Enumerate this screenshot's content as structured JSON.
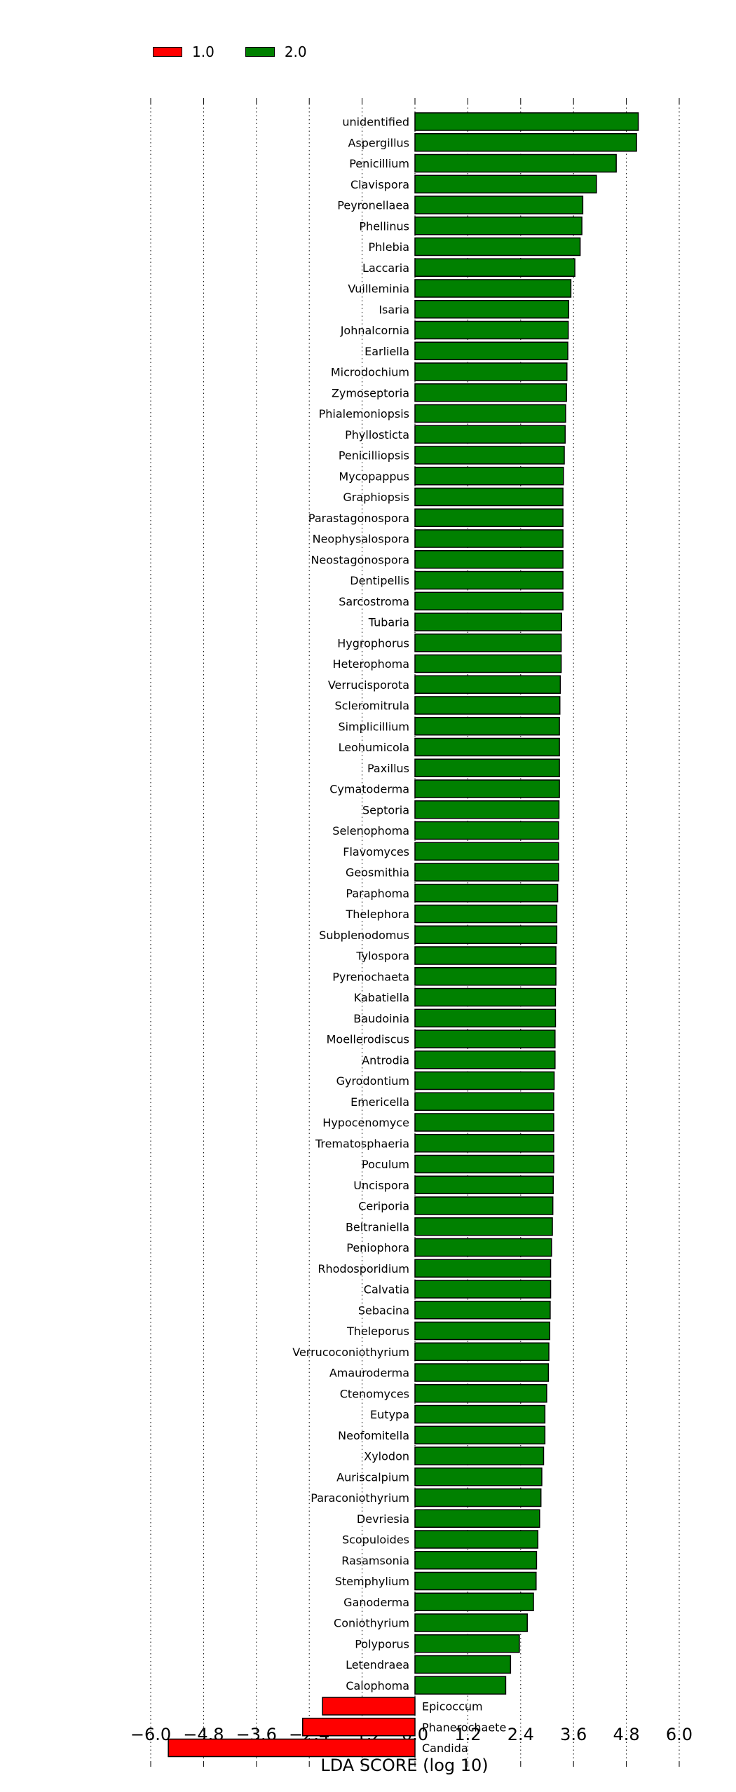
{
  "legend": {
    "items": [
      {
        "label": "1.0",
        "color": "#ff0000"
      },
      {
        "label": "2.0",
        "color": "#008000"
      }
    ]
  },
  "chart_data": {
    "type": "bar",
    "orientation": "horizontal",
    "xlabel": "LDA SCORE (log 10)",
    "xlim": [
      -6.0,
      6.0
    ],
    "xticks": [
      "−6.0",
      "−4.8",
      "−3.6",
      "−2.4",
      "−1.2",
      "0.0",
      "1.2",
      "2.4",
      "3.6",
      "4.8",
      "6.0"
    ],
    "xtick_values": [
      -6.0,
      -4.8,
      -3.6,
      -2.4,
      -1.2,
      0.0,
      1.2,
      2.4,
      3.6,
      4.8,
      6.0
    ],
    "grid": "vertical dotted",
    "legend_position": "top-left",
    "series": [
      {
        "name": "1.0",
        "color": "#ff0000"
      },
      {
        "name": "2.0",
        "color": "#008000"
      }
    ],
    "bars": [
      {
        "label": "unidentified",
        "value": 5.07,
        "group": "2.0"
      },
      {
        "label": "Aspergillus",
        "value": 5.03,
        "group": "2.0"
      },
      {
        "label": "Penicillium",
        "value": 4.57,
        "group": "2.0"
      },
      {
        "label": "Clavispora",
        "value": 4.12,
        "group": "2.0"
      },
      {
        "label": "Peyronellaea",
        "value": 3.81,
        "group": "2.0"
      },
      {
        "label": "Phellinus",
        "value": 3.79,
        "group": "2.0"
      },
      {
        "label": "Phlebia",
        "value": 3.75,
        "group": "2.0"
      },
      {
        "label": "Laccaria",
        "value": 3.63,
        "group": "2.0"
      },
      {
        "label": "Vuilleminia",
        "value": 3.54,
        "group": "2.0"
      },
      {
        "label": "Isaria",
        "value": 3.49,
        "group": "2.0"
      },
      {
        "label": "Johnalcornia",
        "value": 3.48,
        "group": "2.0"
      },
      {
        "label": "Earliella",
        "value": 3.47,
        "group": "2.0"
      },
      {
        "label": "Microdochium",
        "value": 3.45,
        "group": "2.0"
      },
      {
        "label": "Zymoseptoria",
        "value": 3.44,
        "group": "2.0"
      },
      {
        "label": "Phialemoniopsis",
        "value": 3.42,
        "group": "2.0"
      },
      {
        "label": "Phyllosticta",
        "value": 3.41,
        "group": "2.0"
      },
      {
        "label": "Penicilliopsis",
        "value": 3.39,
        "group": "2.0"
      },
      {
        "label": "Mycopappus",
        "value": 3.37,
        "group": "2.0"
      },
      {
        "label": "Graphiopsis",
        "value": 3.36,
        "group": "2.0"
      },
      {
        "label": "Parastagonospora",
        "value": 3.36,
        "group": "2.0"
      },
      {
        "label": "Neophysalospora",
        "value": 3.36,
        "group": "2.0"
      },
      {
        "label": "Neostagonospora",
        "value": 3.36,
        "group": "2.0"
      },
      {
        "label": "Dentipellis",
        "value": 3.36,
        "group": "2.0"
      },
      {
        "label": "Sarcostroma",
        "value": 3.36,
        "group": "2.0"
      },
      {
        "label": "Tubaria",
        "value": 3.33,
        "group": "2.0"
      },
      {
        "label": "Hygrophorus",
        "value": 3.32,
        "group": "2.0"
      },
      {
        "label": "Heterophoma",
        "value": 3.32,
        "group": "2.0"
      },
      {
        "label": "Verrucisporota",
        "value": 3.3,
        "group": "2.0"
      },
      {
        "label": "Scleromitrula",
        "value": 3.29,
        "group": "2.0"
      },
      {
        "label": "Simplicillium",
        "value": 3.28,
        "group": "2.0"
      },
      {
        "label": "Leohumicola",
        "value": 3.28,
        "group": "2.0"
      },
      {
        "label": "Paxillus",
        "value": 3.28,
        "group": "2.0"
      },
      {
        "label": "Cymatoderma",
        "value": 3.28,
        "group": "2.0"
      },
      {
        "label": "Septoria",
        "value": 3.27,
        "group": "2.0"
      },
      {
        "label": "Selenophoma",
        "value": 3.26,
        "group": "2.0"
      },
      {
        "label": "Flavomyces",
        "value": 3.26,
        "group": "2.0"
      },
      {
        "label": "Geosmithia",
        "value": 3.26,
        "group": "2.0"
      },
      {
        "label": "Paraphoma",
        "value": 3.24,
        "group": "2.0"
      },
      {
        "label": "Thelephora",
        "value": 3.22,
        "group": "2.0"
      },
      {
        "label": "Subplenodomus",
        "value": 3.22,
        "group": "2.0"
      },
      {
        "label": "Tylospora",
        "value": 3.2,
        "group": "2.0"
      },
      {
        "label": "Pyrenochaeta",
        "value": 3.2,
        "group": "2.0"
      },
      {
        "label": "Kabatiella",
        "value": 3.19,
        "group": "2.0"
      },
      {
        "label": "Baudoinia",
        "value": 3.19,
        "group": "2.0"
      },
      {
        "label": "Moellerodiscus",
        "value": 3.18,
        "group": "2.0"
      },
      {
        "label": "Antrodia",
        "value": 3.18,
        "group": "2.0"
      },
      {
        "label": "Gyrodontium",
        "value": 3.16,
        "group": "2.0"
      },
      {
        "label": "Emericella",
        "value": 3.15,
        "group": "2.0"
      },
      {
        "label": "Hypocenomyce",
        "value": 3.15,
        "group": "2.0"
      },
      {
        "label": "Trematosphaeria",
        "value": 3.15,
        "group": "2.0"
      },
      {
        "label": "Poculum",
        "value": 3.15,
        "group": "2.0"
      },
      {
        "label": "Uncispora",
        "value": 3.14,
        "group": "2.0"
      },
      {
        "label": "Ceriporia",
        "value": 3.13,
        "group": "2.0"
      },
      {
        "label": "Beltraniella",
        "value": 3.12,
        "group": "2.0"
      },
      {
        "label": "Peniophora",
        "value": 3.1,
        "group": "2.0"
      },
      {
        "label": "Rhodosporidium",
        "value": 3.08,
        "group": "2.0"
      },
      {
        "label": "Calvatia",
        "value": 3.08,
        "group": "2.0"
      },
      {
        "label": "Sebacina",
        "value": 3.07,
        "group": "2.0"
      },
      {
        "label": "Theleporus",
        "value": 3.06,
        "group": "2.0"
      },
      {
        "label": "Verrucoconiothyrium",
        "value": 3.04,
        "group": "2.0"
      },
      {
        "label": "Amauroderma",
        "value": 3.03,
        "group": "2.0"
      },
      {
        "label": "Ctenomyces",
        "value": 2.99,
        "group": "2.0"
      },
      {
        "label": "Eutypa",
        "value": 2.95,
        "group": "2.0"
      },
      {
        "label": "Neofomitella",
        "value": 2.95,
        "group": "2.0"
      },
      {
        "label": "Xylodon",
        "value": 2.92,
        "group": "2.0"
      },
      {
        "label": "Auriscalpium",
        "value": 2.88,
        "group": "2.0"
      },
      {
        "label": "Paraconiothyrium",
        "value": 2.86,
        "group": "2.0"
      },
      {
        "label": "Devriesia",
        "value": 2.83,
        "group": "2.0"
      },
      {
        "label": "Scopuloides",
        "value": 2.79,
        "group": "2.0"
      },
      {
        "label": "Rasamsonia",
        "value": 2.76,
        "group": "2.0"
      },
      {
        "label": "Stemphylium",
        "value": 2.75,
        "group": "2.0"
      },
      {
        "label": "Ganoderma",
        "value": 2.69,
        "group": "2.0"
      },
      {
        "label": "Coniothyrium",
        "value": 2.55,
        "group": "2.0"
      },
      {
        "label": "Polyporus",
        "value": 2.37,
        "group": "2.0"
      },
      {
        "label": "Letendraea",
        "value": 2.17,
        "group": "2.0"
      },
      {
        "label": "Calophoma",
        "value": 2.06,
        "group": "2.0"
      },
      {
        "label": "Epicoccum",
        "value": -2.1,
        "group": "1.0"
      },
      {
        "label": "Phanerochaete",
        "value": -2.55,
        "group": "1.0"
      },
      {
        "label": "Candida",
        "value": -5.6,
        "group": "1.0"
      }
    ]
  }
}
